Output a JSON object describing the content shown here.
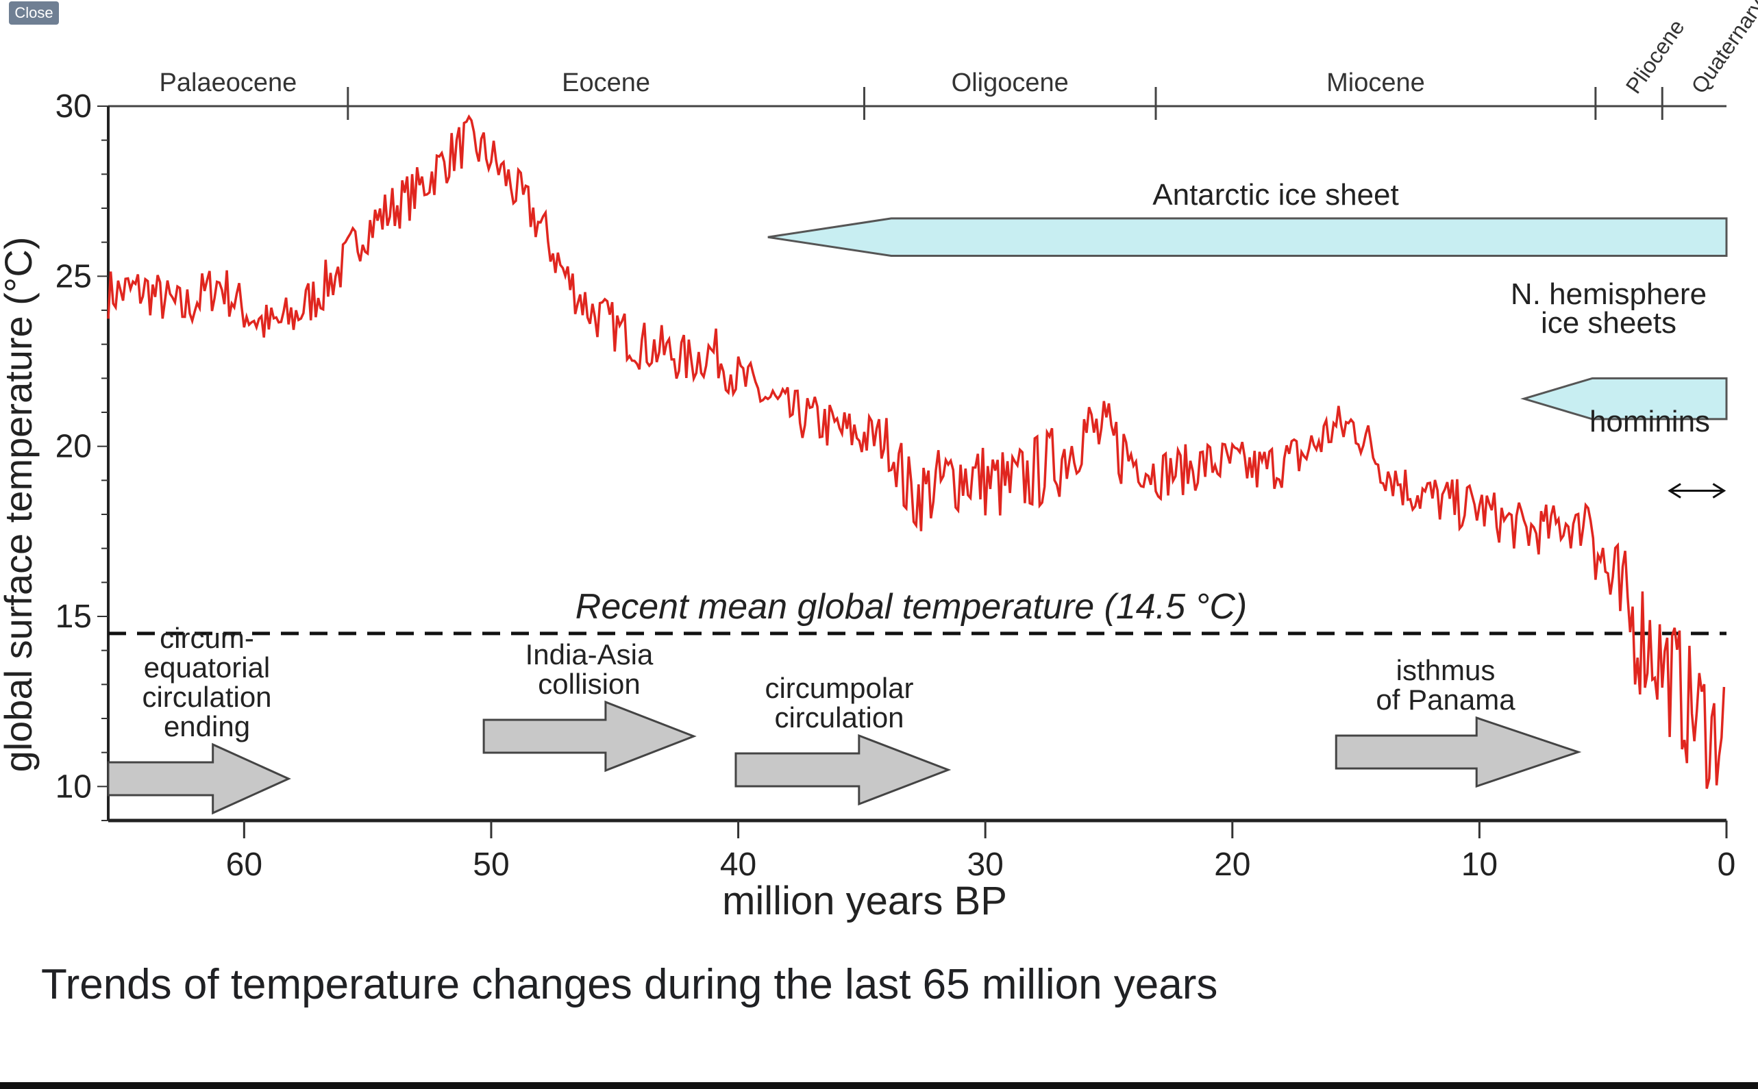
{
  "viewer": {
    "close_label": "Close"
  },
  "caption": "Trends of temperature changes during the last 65 million years",
  "colors": {
    "temperature": "#e0261f",
    "ice": "#c8eef2",
    "arrow": "#c8c8c8",
    "axis": "#222222",
    "close_bg": "#6f7f93"
  },
  "icons": [
    "double-arrow-icon",
    "block-arrow-icon"
  ],
  "chart_data": {
    "type": "line",
    "xlabel": "million years BP",
    "ylabel": "global surface temperature (°C)",
    "xlim": [
      65.5,
      0
    ],
    "ylim": [
      9,
      30
    ],
    "x_ticks": [
      60,
      50,
      40,
      30,
      20,
      10,
      0
    ],
    "y_ticks": [
      10,
      15,
      20,
      25,
      30
    ],
    "epochs": [
      {
        "name": "Palaeocene",
        "start": 65.5,
        "end": 55.8
      },
      {
        "name": "Eocene",
        "start": 55.8,
        "end": 34.9
      },
      {
        "name": "Oligocene",
        "start": 34.9,
        "end": 23.1
      },
      {
        "name": "Miocene",
        "start": 23.1,
        "end": 5.3
      },
      {
        "name": "Pliocene",
        "start": 5.3,
        "end": 2.6
      },
      {
        "name": "Quaternary",
        "start": 2.6,
        "end": 0
      }
    ],
    "reference_line": {
      "label": "Recent mean global temperature (14.5 °C)",
      "y": 14.5
    },
    "series": [
      {
        "color": "#e0261f",
        "x": [
          65.5,
          64,
          62.5,
          61,
          60,
          59,
          58,
          57,
          56,
          55.2,
          54,
          53,
          52,
          51,
          50,
          49,
          48,
          47,
          46,
          45,
          44,
          43,
          42,
          41,
          40,
          39,
          38,
          37,
          36,
          35,
          34,
          33,
          32,
          31,
          30,
          29,
          28,
          27,
          26,
          25,
          24,
          23,
          22,
          21,
          20,
          19,
          18,
          17,
          16,
          15,
          14,
          13,
          12,
          11,
          10,
          9,
          8,
          7,
          6.5,
          6,
          5.5,
          5,
          4.5,
          4,
          3.5,
          3,
          2.5,
          2,
          1.5,
          1,
          0.5,
          0
        ],
        "y": [
          24.5,
          24.6,
          24,
          24.8,
          24,
          23.5,
          23.8,
          24.5,
          25.3,
          26.3,
          27,
          27.5,
          28.3,
          29,
          28.5,
          27.5,
          26.5,
          25,
          24,
          23.5,
          23,
          22.8,
          22.5,
          22.8,
          22,
          21.5,
          21,
          20.8,
          20.5,
          20.3,
          20.2,
          18.5,
          18.8,
          19.2,
          19,
          18.8,
          19.2,
          19.6,
          20.5,
          20.2,
          19.6,
          19.2,
          19.3,
          19.5,
          19.5,
          19.3,
          19.5,
          19.8,
          20.5,
          20.6,
          19.5,
          18.8,
          18.5,
          18.3,
          18.2,
          17.8,
          17.5,
          17.6,
          17.8,
          17.5,
          18.5,
          16.5,
          15.5,
          15,
          14.5,
          14.2,
          13.5,
          13,
          12.3,
          12,
          11.5,
          12
        ]
      }
    ],
    "ice_sheets": [
      {
        "label": "Antarctic ice sheet",
        "start": 38.8,
        "end": 0,
        "y_low": 25.6,
        "y_high": 26.7
      },
      {
        "label": "N. hemisphere ice sheets",
        "start": 8.2,
        "end": 0,
        "y_low": 20.8,
        "y_high": 22
      }
    ],
    "annotations": [
      {
        "id": "hominins",
        "lines": [
          "hominins"
        ],
        "start": 2.3,
        "end": 0.1
      },
      {
        "id": "circum-equatorial",
        "lines": [
          "circum-",
          "equatorial",
          "circulation",
          "ending"
        ],
        "arrow_start": 65.5,
        "arrow_end": 58.2
      },
      {
        "id": "india-asia",
        "lines": [
          "India-Asia",
          "collision"
        ],
        "arrow_start": 50.3,
        "arrow_end": 41.8
      },
      {
        "id": "circumpolar",
        "lines": [
          "circumpolar",
          "circulation"
        ],
        "arrow_start": 40.1,
        "arrow_end": 31.5
      },
      {
        "id": "isthmus",
        "lines": [
          "isthmus",
          "of Panama"
        ],
        "arrow_start": 15.8,
        "arrow_end": 6
      }
    ]
  }
}
